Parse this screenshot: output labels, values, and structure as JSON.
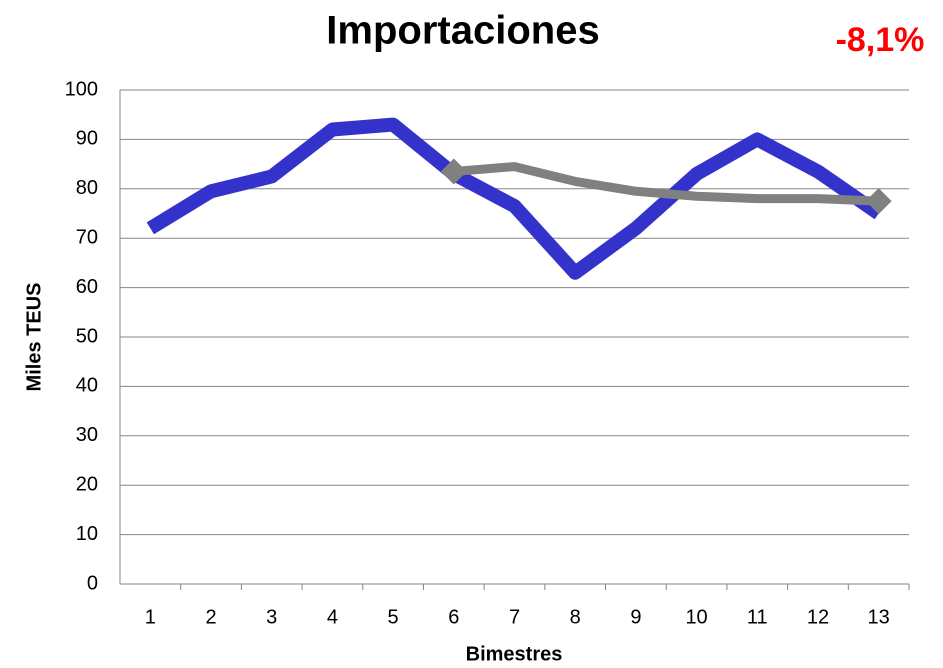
{
  "chart_data": {
    "type": "line",
    "title": "Importaciones",
    "annotation": "-8,1%",
    "x_label": "Bimestres",
    "y_label": "Miles TEUS",
    "categories": [
      "1",
      "2",
      "3",
      "4",
      "5",
      "6",
      "7",
      "8",
      "9",
      "10",
      "11",
      "12",
      "13"
    ],
    "series": [
      {
        "color": "#3333cc",
        "values": [
          72,
          79.5,
          82.5,
          92,
          93,
          83,
          76.5,
          63,
          72,
          83,
          90,
          83.5,
          75
        ]
      },
      {
        "color": "#808080",
        "values": [
          null,
          null,
          null,
          null,
          null,
          83.5,
          84.5,
          81.5,
          79.5,
          78.5,
          78,
          78,
          77.5
        ]
      }
    ],
    "ylim": [
      0,
      100
    ],
    "yticks": [
      0,
      10,
      20,
      30,
      40,
      50,
      60,
      70,
      80,
      90,
      100
    ],
    "grid": true
  }
}
